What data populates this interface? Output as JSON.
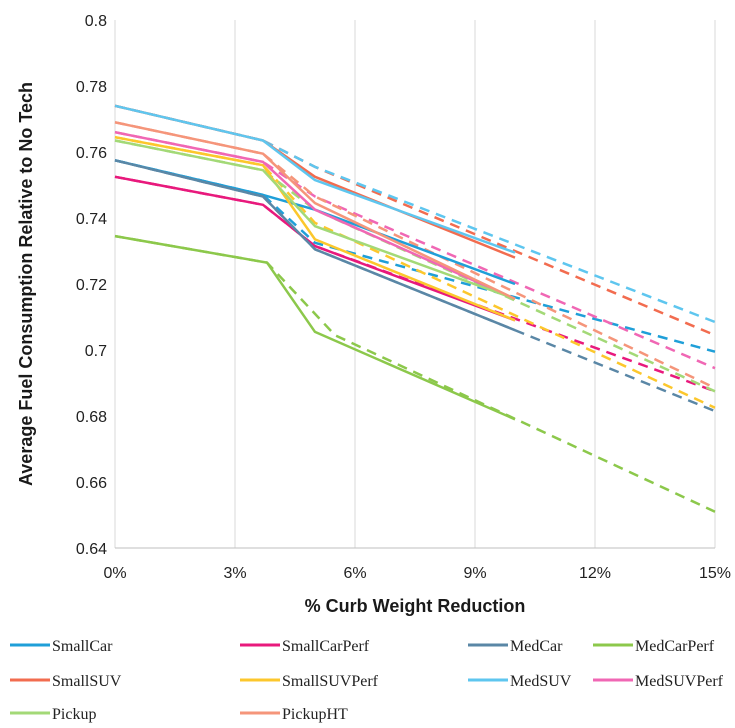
{
  "chart_data": {
    "type": "line",
    "title": "",
    "xlabel": "% Curb Weight Reduction",
    "ylabel": "Average Fuel Consumption Relative to No Tech",
    "xlim": [
      0,
      15
    ],
    "ylim": [
      0.64,
      0.8
    ],
    "x_ticks": [
      {
        "value": 0,
        "label": "0%"
      },
      {
        "value": 3,
        "label": "3%"
      },
      {
        "value": 6,
        "label": "6%"
      },
      {
        "value": 9,
        "label": "9%"
      },
      {
        "value": 12,
        "label": "12%"
      },
      {
        "value": 15,
        "label": "15%"
      }
    ],
    "y_ticks": [
      {
        "value": 0.64,
        "label": "0.64"
      },
      {
        "value": 0.66,
        "label": "0.66"
      },
      {
        "value": 0.68,
        "label": "0.68"
      },
      {
        "value": 0.7,
        "label": "0.7"
      },
      {
        "value": 0.72,
        "label": "0.72"
      },
      {
        "value": 0.74,
        "label": "0.74"
      },
      {
        "value": 0.76,
        "label": "0.76"
      },
      {
        "value": 0.78,
        "label": "0.78"
      },
      {
        "value": 0.8,
        "label": "0.8"
      }
    ],
    "grid": true,
    "legend_position": "bottom",
    "series": [
      {
        "name": "SmallCar",
        "color": "#1f9fd8",
        "solid_x": [
          0,
          3.7,
          5,
          10
        ],
        "solid_y": [
          0.7575,
          0.747,
          0.7425,
          0.72
        ],
        "dashed_x": [
          0,
          3.7,
          5,
          15
        ],
        "dashed_y": [
          0.7575,
          0.747,
          0.7325,
          0.6995
        ]
      },
      {
        "name": "SmallCarPerf",
        "color": "#e8197c",
        "solid_x": [
          0,
          3.7,
          5,
          10
        ],
        "solid_y": [
          0.7525,
          0.744,
          0.7315,
          0.709
        ],
        "dashed_x": [
          0,
          3.7,
          5,
          15
        ],
        "dashed_y": [
          0.7525,
          0.744,
          0.7315,
          0.6875
        ]
      },
      {
        "name": "MedCar",
        "color": "#5a87a6",
        "solid_x": [
          0,
          3.7,
          5,
          10
        ],
        "solid_y": [
          0.7575,
          0.7465,
          0.7305,
          0.706
        ],
        "dashed_x": [
          0,
          3.7,
          5,
          15
        ],
        "dashed_y": [
          0.7575,
          0.7465,
          0.7305,
          0.6815
        ]
      },
      {
        "name": "MedCarPerf",
        "color": "#8cc84b",
        "solid_x": [
          0,
          3.8,
          5,
          10
        ],
        "solid_y": [
          0.7345,
          0.7265,
          0.7055,
          0.679
        ],
        "dashed_x": [
          0,
          3.8,
          5.5,
          15
        ],
        "dashed_y": [
          0.7345,
          0.7265,
          0.7045,
          0.651
        ]
      },
      {
        "name": "SmallSUV",
        "color": "#f26c4f",
        "solid_x": [
          0,
          3.7,
          5,
          10
        ],
        "solid_y": [
          0.774,
          0.7635,
          0.7525,
          0.728
        ],
        "dashed_x": [
          0,
          3.7,
          5,
          15
        ],
        "dashed_y": [
          0.774,
          0.7635,
          0.7555,
          0.7045
        ]
      },
      {
        "name": "SmallSUVPerf",
        "color": "#fcc72c",
        "solid_x": [
          0,
          3.7,
          5,
          10
        ],
        "solid_y": [
          0.7645,
          0.756,
          0.7335,
          0.709
        ],
        "dashed_x": [
          0,
          3.7,
          5,
          15
        ],
        "dashed_y": [
          0.7645,
          0.756,
          0.7385,
          0.6825
        ]
      },
      {
        "name": "MedSUV",
        "color": "#5ec6ef",
        "solid_x": [
          0,
          3.7,
          5,
          10
        ],
        "solid_y": [
          0.774,
          0.7635,
          0.7515,
          0.7295
        ],
        "dashed_x": [
          0,
          3.7,
          5,
          15
        ],
        "dashed_y": [
          0.774,
          0.7635,
          0.7555,
          0.7085
        ]
      },
      {
        "name": "MedSUVPerf",
        "color": "#f067b4",
        "solid_x": [
          0,
          3.7,
          5,
          10
        ],
        "solid_y": [
          0.766,
          0.757,
          0.7425,
          0.7155
        ],
        "dashed_x": [
          0,
          3.7,
          5,
          15
        ],
        "dashed_y": [
          0.766,
          0.757,
          0.7465,
          0.6945
        ]
      },
      {
        "name": "Pickup",
        "color": "#a3d977",
        "solid_x": [
          0,
          3.7,
          5,
          10
        ],
        "solid_y": [
          0.7635,
          0.7545,
          0.7375,
          0.7155
        ],
        "dashed_x": [
          0,
          3.7,
          5,
          15
        ],
        "dashed_y": [
          0.7635,
          0.7545,
          0.7425,
          0.6875
        ]
      },
      {
        "name": "PickupHT",
        "color": "#f5957a",
        "solid_x": [
          0,
          3.7,
          5,
          10
        ],
        "solid_y": [
          0.769,
          0.7595,
          0.7445,
          0.7155
        ],
        "dashed_x": [
          0,
          3.7,
          5,
          15
        ],
        "dashed_y": [
          0.769,
          0.7595,
          0.7465,
          0.6885
        ]
      }
    ]
  }
}
